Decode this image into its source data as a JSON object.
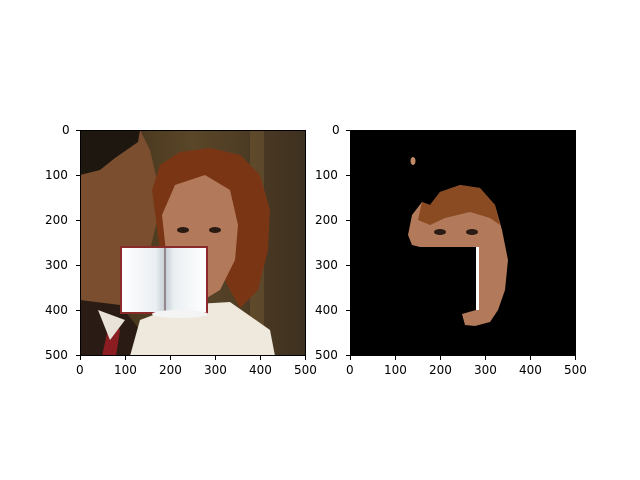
{
  "panels": [
    {
      "name": "left",
      "xticks": [
        "0",
        "100",
        "200",
        "300",
        "400",
        "500"
      ],
      "yticks": [
        "0",
        "100",
        "200",
        "300",
        "400",
        "500"
      ]
    },
    {
      "name": "right",
      "xticks": [
        "0",
        "100",
        "200",
        "300",
        "400",
        "500"
      ],
      "yticks": [
        "0",
        "100",
        "200",
        "300",
        "400",
        "500"
      ]
    }
  ],
  "colors": {
    "background_scene": "#4b3a22",
    "skin": "#b27a5a",
    "hair": "#7a3614",
    "mask_background": "#000000",
    "book_page": "#eef1f3"
  }
}
